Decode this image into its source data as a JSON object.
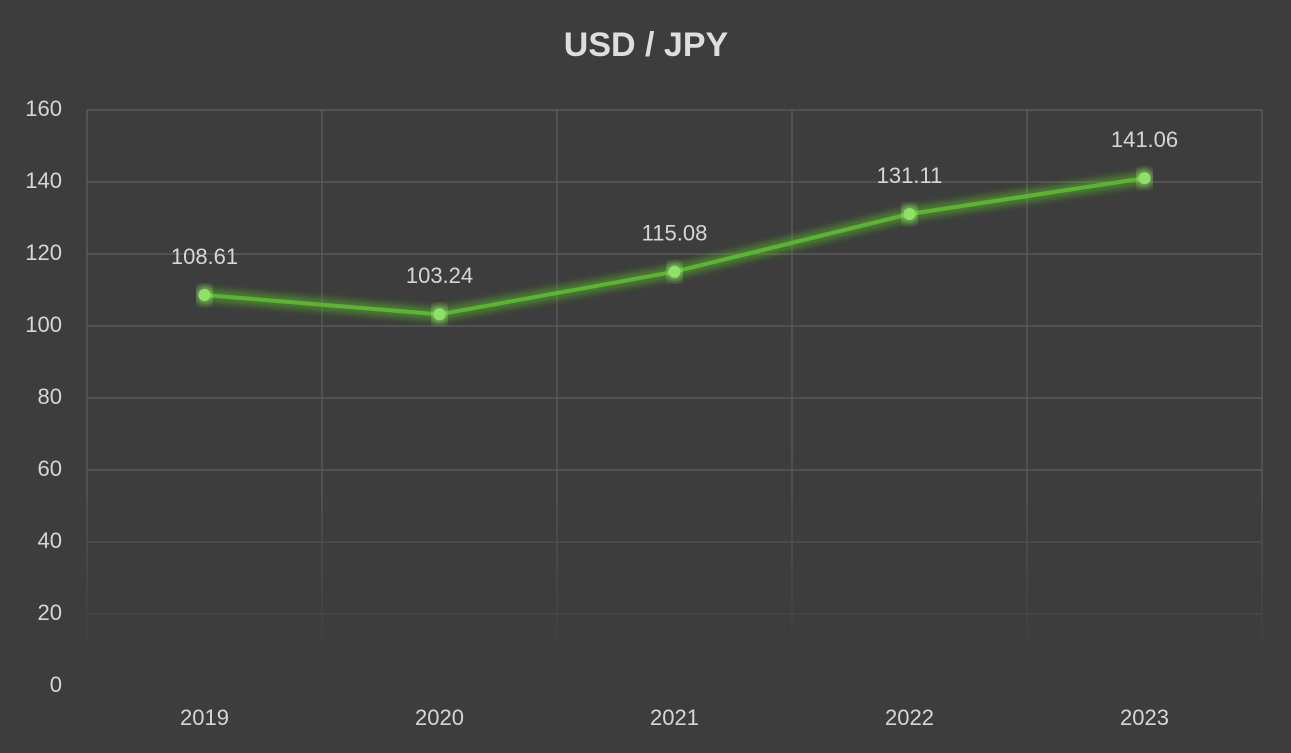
{
  "chart_data": {
    "type": "line",
    "title": "USD / JPY",
    "categories": [
      "2019",
      "2020",
      "2021",
      "2022",
      "2023"
    ],
    "series": [
      {
        "color": "#5cb531",
        "values": [
          108.61,
          103.24,
          115.08,
          131.11,
          141.06
        ]
      }
    ],
    "ylim": [
      0,
      160
    ],
    "yticks": [
      0,
      20,
      40,
      60,
      80,
      100,
      120,
      140,
      160
    ],
    "grid": true
  }
}
